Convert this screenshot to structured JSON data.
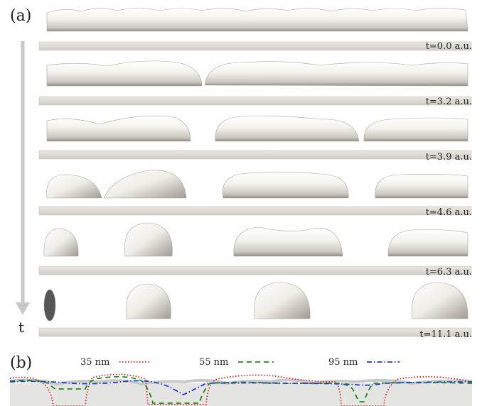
{
  "panel_a": {
    "label": "(a)",
    "time_axis_label": "t",
    "frames": [
      {
        "time_label": "t=0.0 a.u."
      },
      {
        "time_label": "t=3.2 a.u."
      },
      {
        "time_label": "t=3.9 a.u."
      },
      {
        "time_label": "t=4.6 a.u."
      },
      {
        "time_label": "t=6.3 a.u."
      },
      {
        "time_label": "t=11.1 a.u."
      }
    ]
  },
  "panel_b": {
    "label": "(b)",
    "legend": [
      {
        "label": "35 nm",
        "color": "#e02020",
        "style": "dotted"
      },
      {
        "label": "55 nm",
        "color": "#1a8a1a",
        "style": "dashed"
      },
      {
        "label": "95 nm",
        "color": "#1f3fcf",
        "style": "dash-dot"
      }
    ]
  },
  "colors": {
    "film": "#f0efe8",
    "substrate": "#dddbd3",
    "arrow": "#c8c8c8"
  }
}
